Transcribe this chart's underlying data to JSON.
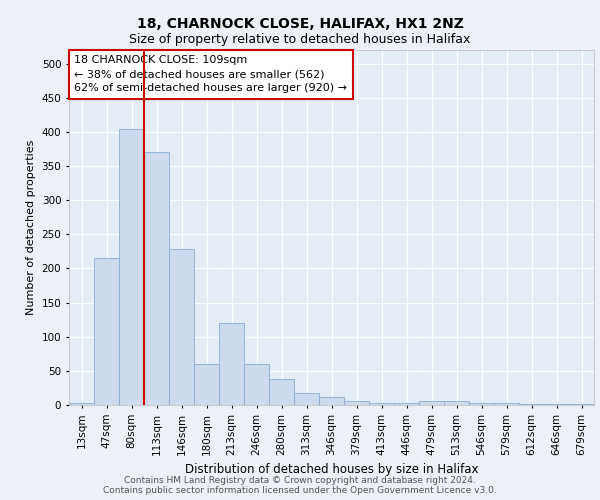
{
  "title1": "18, CHARNOCK CLOSE, HALIFAX, HX1 2NZ",
  "title2": "Size of property relative to detached houses in Halifax",
  "xlabel": "Distribution of detached houses by size in Halifax",
  "ylabel": "Number of detached properties",
  "categories": [
    "13sqm",
    "47sqm",
    "80sqm",
    "113sqm",
    "146sqm",
    "180sqm",
    "213sqm",
    "246sqm",
    "280sqm",
    "313sqm",
    "346sqm",
    "379sqm",
    "413sqm",
    "446sqm",
    "479sqm",
    "513sqm",
    "546sqm",
    "579sqm",
    "612sqm",
    "646sqm",
    "679sqm"
  ],
  "values": [
    3,
    215,
    405,
    370,
    228,
    60,
    120,
    60,
    38,
    17,
    12,
    6,
    3,
    3,
    6,
    6,
    3,
    3,
    1,
    1,
    1
  ],
  "bar_color": "#cddaec",
  "bar_edge_color": "#8aadd4",
  "vline_index": 3,
  "vline_color": "#cc0000",
  "ylim": [
    0,
    520
  ],
  "yticks": [
    0,
    50,
    100,
    150,
    200,
    250,
    300,
    350,
    400,
    450,
    500
  ],
  "annotation_title": "18 CHARNOCK CLOSE: 109sqm",
  "annotation_line1": "← 38% of detached houses are smaller (562)",
  "annotation_line2": "62% of semi-detached houses are larger (920) →",
  "annotation_box_color": "#ffffff",
  "annotation_box_edge": "#cc0000",
  "bg_color": "#edf1f7",
  "plot_bg_color": "#e4ecf5",
  "footer1": "Contains HM Land Registry data © Crown copyright and database right 2024.",
  "footer2": "Contains public sector information licensed under the Open Government Licence v3.0.",
  "grid_color": "#ffffff",
  "title1_fontsize": 10,
  "title2_fontsize": 9,
  "xlabel_fontsize": 8.5,
  "ylabel_fontsize": 8,
  "tick_fontsize": 7.5,
  "annotation_fontsize": 8,
  "footer_fontsize": 6.5
}
